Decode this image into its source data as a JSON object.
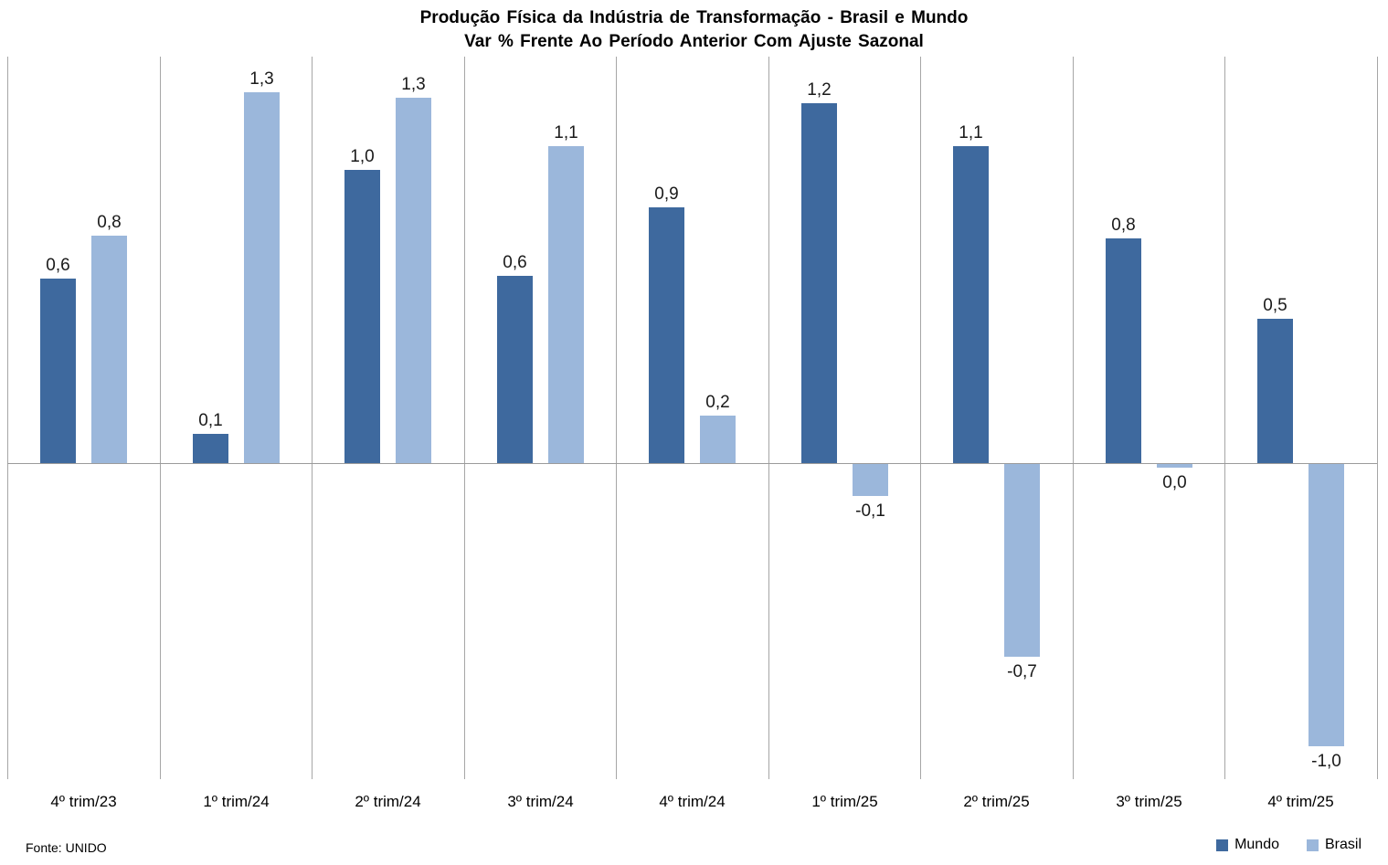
{
  "title": {
    "line1": "Produção Física da Indústria de Transformação - Brasil e Mundo",
    "line2": "Var % Frente Ao Período Anterior Com Ajuste Sazonal"
  },
  "source_note": "Fonte: UNIDO",
  "legend": {
    "position": "bottom-right",
    "items": [
      {
        "label": "Mundo",
        "color": "#3e699e"
      },
      {
        "label": "Brasil",
        "color": "#9bb7db"
      }
    ]
  },
  "chart_data": {
    "type": "bar",
    "title": "Produção Física da Indústria de Transformação - Brasil e Mundo",
    "subtitle": "Var % Frente Ao Período Anterior Com Ajuste Sazonal",
    "categories": [
      "4º trim/23",
      "1º trim/24",
      "2º trim/24",
      "3º trim/24",
      "4º trim/24",
      "1º trim/25",
      "2º trim/25",
      "3º trim/25",
      "4º trim/25"
    ],
    "series": [
      {
        "name": "Mundo",
        "color": "#3e699e",
        "values": [
          0.6,
          0.1,
          1.0,
          0.6,
          0.9,
          1.2,
          1.1,
          0.8,
          0.5
        ],
        "labels": [
          "0,6",
          "0,1",
          "1,0",
          "0,6",
          "0,9",
          "1,2",
          "1,1",
          "0,8",
          "0,5"
        ],
        "plot_values": [
          0.64,
          0.1,
          1.02,
          0.65,
          0.89,
          1.25,
          1.1,
          0.78,
          0.5
        ]
      },
      {
        "name": "Brasil",
        "color": "#9bb7db",
        "values": [
          0.8,
          1.3,
          1.3,
          1.1,
          0.2,
          -0.1,
          -0.7,
          0.0,
          -1.0
        ],
        "labels": [
          "0,8",
          "1,3",
          "1,3",
          "1,1",
          "0,2",
          "-0,1",
          "-0,7",
          "0,0",
          "-1,0"
        ],
        "plot_values": [
          0.79,
          1.29,
          1.27,
          1.1,
          0.165,
          -0.11,
          -0.67,
          -0.013,
          -0.98
        ]
      }
    ],
    "xlabel": "",
    "ylabel": "",
    "ylim": [
      -1.1,
      1.45
    ],
    "y_axis_visible": false,
    "grid": "vertical-category-separators",
    "value_labels": "outside-end",
    "legend_position": "bottom-right"
  }
}
